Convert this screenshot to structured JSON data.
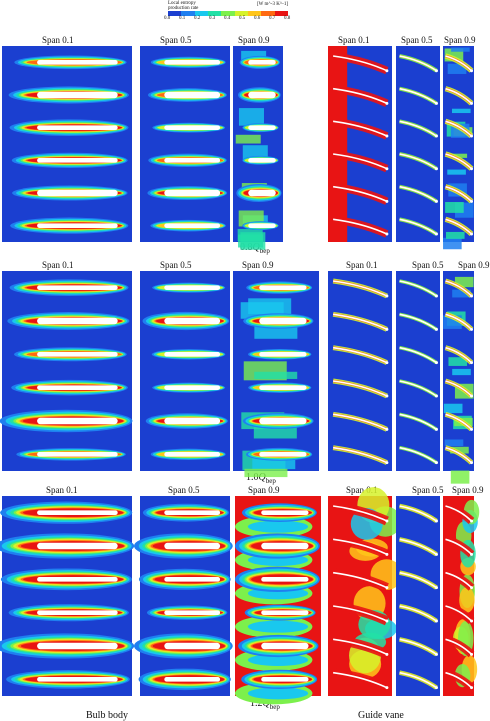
{
  "colorbar": {
    "title_line1": "Local entropy",
    "title_line2": "production rate",
    "unit": "[W m^-3 K^-1]",
    "ticks": [
      "0.0",
      "0.1",
      "0.2",
      "0.3",
      "0.4",
      "0.5",
      "0.6",
      "0.7",
      "0.8"
    ],
    "colors": [
      "#1b3fd0",
      "#1f7ff0",
      "#19c8ee",
      "#22e0a6",
      "#7cf04c",
      "#d6f22a",
      "#ffc51a",
      "#ff6a12",
      "#e81414"
    ]
  },
  "span_labels": {
    "bulb": [
      "Span 0.1",
      "Span 0.5",
      "Span 0.9"
    ],
    "vane": [
      "Span 0.1",
      "Span 0.5",
      "Span 0.9"
    ]
  },
  "row_labels": [
    {
      "prefix": "0.8",
      "symbol": "Q",
      "subscript": "bep"
    },
    {
      "prefix": "1.0",
      "symbol": "Q",
      "subscript": "bep"
    },
    {
      "prefix": "1.2",
      "symbol": "Q",
      "subscript": "bep"
    }
  ],
  "bottom_labels": {
    "bulb": "Bulb body",
    "vane": "Guide vane"
  }
}
